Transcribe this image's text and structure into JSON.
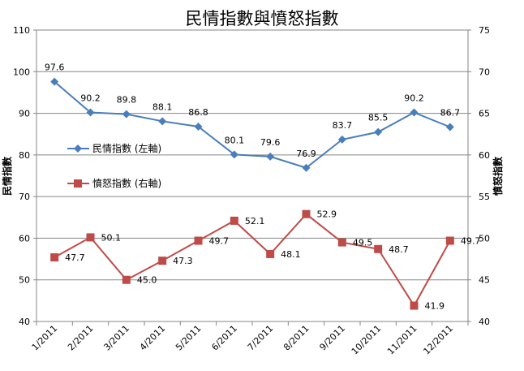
{
  "chart_data": {
    "type": "line",
    "title": "民情指數與憤怒指數",
    "ylabel_left": "民情指數",
    "ylabel_right": "憤怒指數",
    "categories": [
      "1/2011",
      "2/2011",
      "3/2011",
      "4/2011",
      "5/2011",
      "6/2011",
      "7/2011",
      "8/2011",
      "9/2011",
      "10/2011",
      "11/2011",
      "12/2011"
    ],
    "ylim_left": [
      40,
      110
    ],
    "yticks_left": [
      40,
      50,
      60,
      70,
      80,
      90,
      100,
      110
    ],
    "ylim_right": [
      40,
      75
    ],
    "yticks_right": [
      40,
      45,
      50,
      55,
      60,
      65,
      70,
      75
    ],
    "grid": true,
    "series": [
      {
        "name": "民情指數 (左軸)",
        "axis": "left",
        "color": "#4a7ebb",
        "marker": "diamond",
        "values": [
          97.6,
          90.2,
          89.8,
          88.1,
          86.8,
          80.1,
          79.6,
          76.9,
          83.7,
          85.5,
          90.2,
          86.7
        ],
        "labels": [
          "97.6",
          "90.2",
          "89.8",
          "88.1",
          "86.8",
          "80.1",
          "79.6",
          "76.9",
          "83.7",
          "85.5",
          "90.2",
          "86.7"
        ]
      },
      {
        "name": "憤怒指數 (右軸)",
        "axis": "right",
        "color": "#be4b48",
        "marker": "square",
        "values": [
          47.7,
          50.1,
          45.0,
          47.3,
          49.7,
          52.1,
          48.1,
          52.9,
          49.5,
          48.7,
          41.9,
          49.7
        ],
        "labels": [
          "47.7",
          "50.1",
          "45.0",
          "47.3",
          "49.7",
          "52.1",
          "48.1",
          "52.9",
          "49.5",
          "48.7",
          "41.9",
          "49.7"
        ]
      }
    ]
  }
}
